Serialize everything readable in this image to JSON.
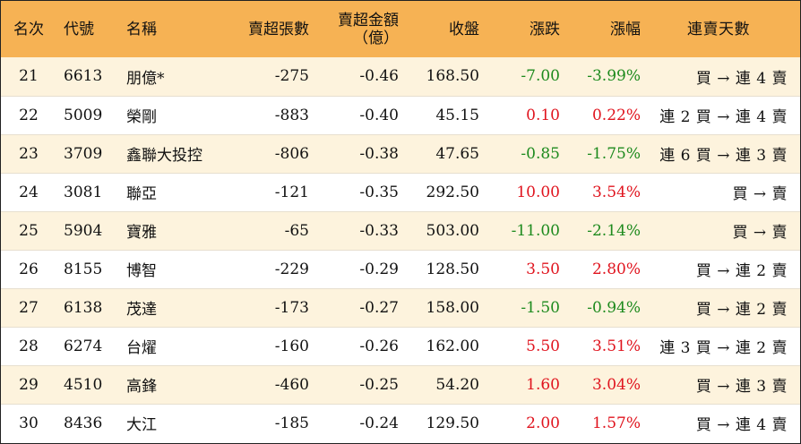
{
  "header": {
    "rank": "名次",
    "code": "代號",
    "name": "名稱",
    "sell_lots": "賣超張數",
    "sell_amount_line1": "賣超金額",
    "sell_amount_line2": "（億）",
    "close": "收盤",
    "change": "漲跌",
    "change_pct": "漲幅",
    "streak": "連賣天數"
  },
  "colors": {
    "header_bg": "#f6b254",
    "odd_row_bg": "#fdf3dd",
    "up": "#e0141e",
    "down": "#1d8a1d"
  },
  "rows": [
    {
      "rank": "21",
      "code": "6613",
      "name": "朋億*",
      "sell_lots": "-275",
      "sell_amount": "-0.46",
      "close": "168.50",
      "change": "-7.00",
      "change_pct": "-3.99%",
      "dir": "down",
      "streak": "買 → 連 4 賣"
    },
    {
      "rank": "22",
      "code": "5009",
      "name": "榮剛",
      "sell_lots": "-883",
      "sell_amount": "-0.40",
      "close": "45.15",
      "change": "0.10",
      "change_pct": "0.22%",
      "dir": "up",
      "streak": "連 2 買 → 連 4 賣"
    },
    {
      "rank": "23",
      "code": "3709",
      "name": "鑫聯大投控",
      "sell_lots": "-806",
      "sell_amount": "-0.38",
      "close": "47.65",
      "change": "-0.85",
      "change_pct": "-1.75%",
      "dir": "down",
      "streak": "連 6 買 → 連 3 賣"
    },
    {
      "rank": "24",
      "code": "3081",
      "name": "聯亞",
      "sell_lots": "-121",
      "sell_amount": "-0.35",
      "close": "292.50",
      "change": "10.00",
      "change_pct": "3.54%",
      "dir": "up",
      "streak": "買 → 賣"
    },
    {
      "rank": "25",
      "code": "5904",
      "name": "寶雅",
      "sell_lots": "-65",
      "sell_amount": "-0.33",
      "close": "503.00",
      "change": "-11.00",
      "change_pct": "-2.14%",
      "dir": "down",
      "streak": "買 → 賣"
    },
    {
      "rank": "26",
      "code": "8155",
      "name": "博智",
      "sell_lots": "-229",
      "sell_amount": "-0.29",
      "close": "128.50",
      "change": "3.50",
      "change_pct": "2.80%",
      "dir": "up",
      "streak": "買 → 連 2 賣"
    },
    {
      "rank": "27",
      "code": "6138",
      "name": "茂達",
      "sell_lots": "-173",
      "sell_amount": "-0.27",
      "close": "158.00",
      "change": "-1.50",
      "change_pct": "-0.94%",
      "dir": "down",
      "streak": "買 → 連 2 賣"
    },
    {
      "rank": "28",
      "code": "6274",
      "name": "台燿",
      "sell_lots": "-160",
      "sell_amount": "-0.26",
      "close": "162.00",
      "change": "5.50",
      "change_pct": "3.51%",
      "dir": "up",
      "streak": "連 3 買 → 連 2 賣"
    },
    {
      "rank": "29",
      "code": "4510",
      "name": "高鋒",
      "sell_lots": "-460",
      "sell_amount": "-0.25",
      "close": "54.20",
      "change": "1.60",
      "change_pct": "3.04%",
      "dir": "up",
      "streak": "買 → 連 3 賣"
    },
    {
      "rank": "30",
      "code": "8436",
      "name": "大江",
      "sell_lots": "-185",
      "sell_amount": "-0.24",
      "close": "129.50",
      "change": "2.00",
      "change_pct": "1.57%",
      "dir": "up",
      "streak": "買 → 連 4 賣"
    }
  ]
}
